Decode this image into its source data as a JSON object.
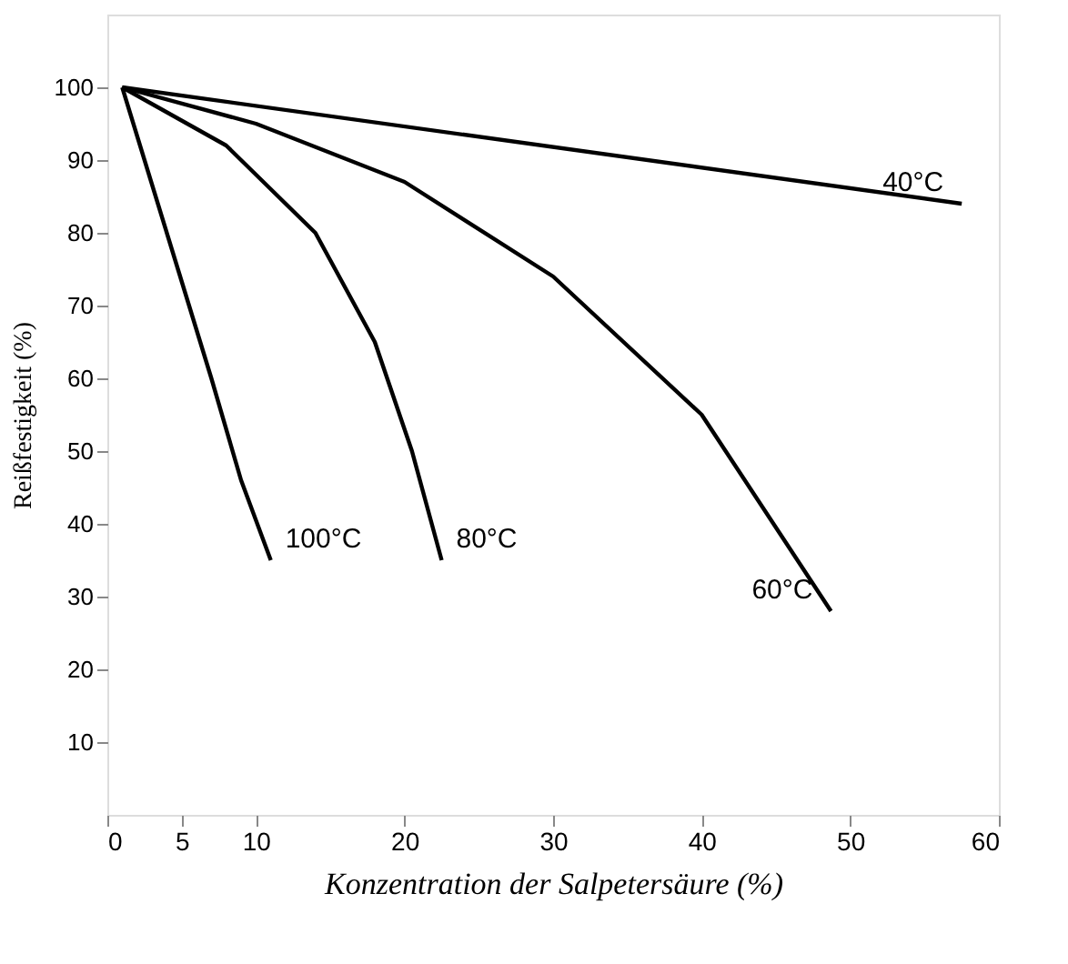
{
  "chart_data": {
    "type": "line",
    "xlabel": "Konzentration der Salpetersäure (%)",
    "ylabel": "Reißfestigkeit (%)",
    "xlim": [
      0,
      60
    ],
    "ylim": [
      0,
      110
    ],
    "xticks": [
      0,
      5,
      10,
      20,
      30,
      40,
      50,
      60
    ],
    "yticks": [
      10,
      20,
      30,
      40,
      50,
      60,
      70,
      80,
      90,
      100
    ],
    "grid": false,
    "legend": false,
    "marker": "none",
    "line_style": "solid",
    "series": [
      {
        "name": "40°C",
        "color": "#000000",
        "x": [
          1,
          57.5
        ],
        "values": [
          100,
          84
        ]
      },
      {
        "name": "60°C",
        "color": "#000000",
        "x": [
          1,
          10,
          20,
          30,
          40,
          48.7
        ],
        "values": [
          100,
          95,
          87,
          74,
          55,
          28
        ]
      },
      {
        "name": "80°C",
        "color": "#000000",
        "x": [
          1,
          8,
          14,
          18,
          20.5,
          22.5
        ],
        "values": [
          100,
          92,
          80,
          65,
          50,
          35
        ]
      },
      {
        "name": "100°C",
        "color": "#000000",
        "x": [
          1,
          4,
          7,
          9,
          11
        ],
        "values": [
          100,
          80,
          60,
          46,
          35
        ]
      }
    ]
  }
}
